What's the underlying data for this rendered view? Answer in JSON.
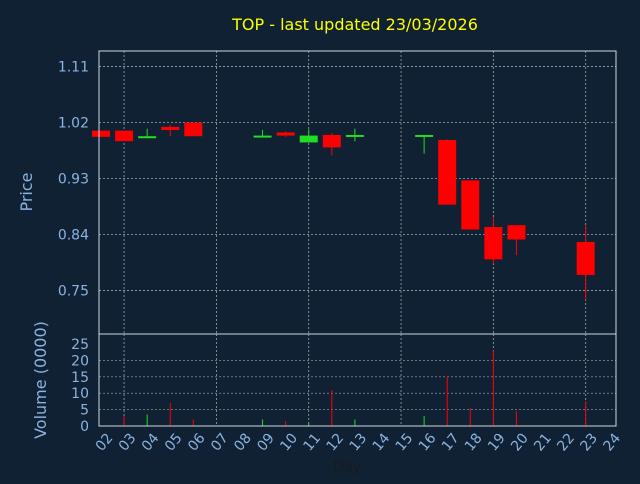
{
  "chart_data": [
    {
      "type": "candlestick",
      "title": "TOP - last updated 23/03/2026",
      "ylabel": "Price",
      "ylim": [
        0.68,
        1.135
      ],
      "yticks": [
        "1.11",
        "1.02",
        "0.93",
        "0.84",
        "0.75"
      ],
      "grid": true,
      "candles": [
        {
          "day": "02",
          "open": 1.007,
          "close": 0.997,
          "high": 1.007,
          "low": 0.997,
          "direction": "down"
        },
        {
          "day": "03",
          "open": 1.007,
          "close": 0.99,
          "high": 1.007,
          "low": 0.99,
          "direction": "down"
        },
        {
          "day": "04",
          "open": 0.995,
          "close": 0.998,
          "high": 1.01,
          "low": 0.995,
          "direction": "up"
        },
        {
          "day": "05",
          "open": 1.013,
          "close": 1.008,
          "high": 1.016,
          "low": 0.998,
          "direction": "down"
        },
        {
          "day": "06",
          "open": 1.02,
          "close": 0.998,
          "high": 1.02,
          "low": 0.998,
          "direction": "down"
        },
        {
          "day": "09",
          "open": 0.997,
          "close": 0.999,
          "high": 1.008,
          "low": 0.996,
          "direction": "up"
        },
        {
          "day": "10",
          "open": 1.004,
          "close": 0.999,
          "high": 1.006,
          "low": 0.997,
          "direction": "down"
        },
        {
          "day": "11",
          "open": 0.988,
          "close": 0.999,
          "high": 1.009,
          "low": 0.988,
          "direction": "up"
        },
        {
          "day": "12",
          "open": 1.0,
          "close": 0.98,
          "high": 1.003,
          "low": 0.967,
          "direction": "down"
        },
        {
          "day": "13",
          "open": 0.998,
          "close": 1.0,
          "high": 1.01,
          "low": 0.99,
          "direction": "up"
        },
        {
          "day": "16",
          "open": 0.999,
          "close": 1.0,
          "high": 1.0,
          "low": 0.97,
          "direction": "up"
        },
        {
          "day": "17",
          "open": 0.992,
          "close": 0.888,
          "high": 0.993,
          "low": 0.888,
          "direction": "down"
        },
        {
          "day": "18",
          "open": 0.927,
          "close": 0.848,
          "high": 0.927,
          "low": 0.848,
          "direction": "down"
        },
        {
          "day": "19",
          "open": 0.852,
          "close": 0.8,
          "high": 0.868,
          "low": 0.793,
          "direction": "down"
        },
        {
          "day": "20",
          "open": 0.855,
          "close": 0.832,
          "high": 0.855,
          "low": 0.807,
          "direction": "down"
        },
        {
          "day": "23",
          "open": 0.828,
          "close": 0.775,
          "high": 0.855,
          "low": 0.735,
          "direction": "down"
        }
      ],
      "colors": {
        "up": "#22dd22",
        "down": "#ff0000"
      }
    },
    {
      "type": "bar",
      "ylabel": "Volume (0000)",
      "xlabel": "Day",
      "ylim": [
        0,
        25
      ],
      "yticks": [
        "25",
        "20",
        "15",
        "10",
        "5",
        "0"
      ],
      "categories": [
        "02",
        "03",
        "04",
        "05",
        "06",
        "07",
        "08",
        "09",
        "10",
        "11",
        "12",
        "13",
        "14",
        "15",
        "16",
        "17",
        "18",
        "19",
        "20",
        "21",
        "22",
        "23",
        "24"
      ],
      "bars": [
        {
          "day": "03",
          "value": 3,
          "direction": "down"
        },
        {
          "day": "04",
          "value": 3.5,
          "direction": "up"
        },
        {
          "day": "05",
          "value": 7,
          "direction": "down"
        },
        {
          "day": "06",
          "value": 2,
          "direction": "down"
        },
        {
          "day": "09",
          "value": 2,
          "direction": "up"
        },
        {
          "day": "10",
          "value": 1.5,
          "direction": "down"
        },
        {
          "day": "11",
          "value": 1,
          "direction": "up"
        },
        {
          "day": "12",
          "value": 11,
          "direction": "down"
        },
        {
          "day": "13",
          "value": 2,
          "direction": "up"
        },
        {
          "day": "16",
          "value": 3,
          "direction": "up"
        },
        {
          "day": "17",
          "value": 15,
          "direction": "down"
        },
        {
          "day": "18",
          "value": 5.5,
          "direction": "down"
        },
        {
          "day": "19",
          "value": 23,
          "direction": "down"
        },
        {
          "day": "20",
          "value": 4.5,
          "direction": "down"
        },
        {
          "day": "23",
          "value": 7.5,
          "direction": "down"
        }
      ]
    }
  ],
  "colors": {
    "background": "#0f2133",
    "title": "#ffff00",
    "axis_text": "#8ab4e0",
    "frame": "#d0d8e0",
    "grid": "#9aa6b2"
  }
}
